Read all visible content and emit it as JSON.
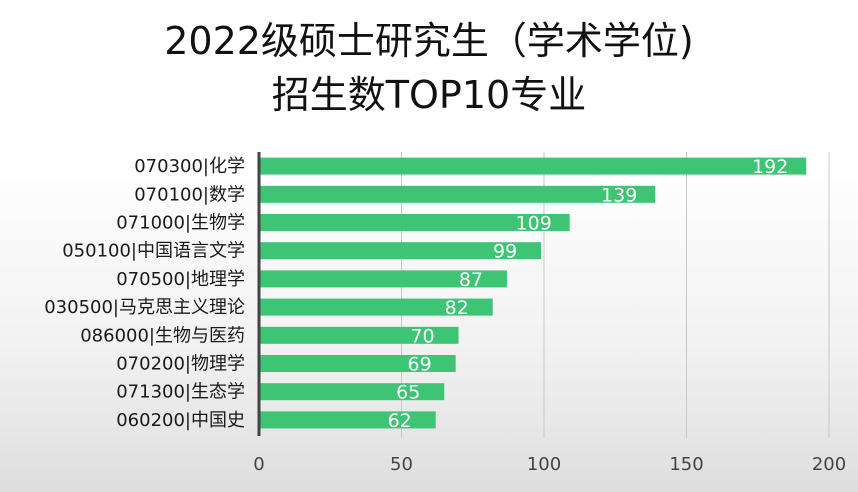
{
  "chart_data": {
    "type": "bar",
    "orientation": "horizontal",
    "title_line1": "2022级硕士研究生（学术学位)",
    "title_line2": "招生数TOP10专业",
    "categories": [
      "070300|化学",
      "070100|数学",
      "071000|生物学",
      "050100|中国语言文学",
      "070500|地理学",
      "030500|马克思主义理论",
      "086000|生物与医药",
      "070200|物理学",
      "071300|生态学",
      "060200|中国史"
    ],
    "values": [
      192,
      139,
      109,
      99,
      87,
      82,
      70,
      69,
      65,
      62
    ],
    "xlim": [
      0,
      200
    ],
    "xticks": [
      "0",
      "50",
      "100",
      "150",
      "200"
    ],
    "grid": true,
    "bar_color": "#3ec475",
    "label_color": "#ffffff",
    "xlabel": "",
    "ylabel": ""
  }
}
